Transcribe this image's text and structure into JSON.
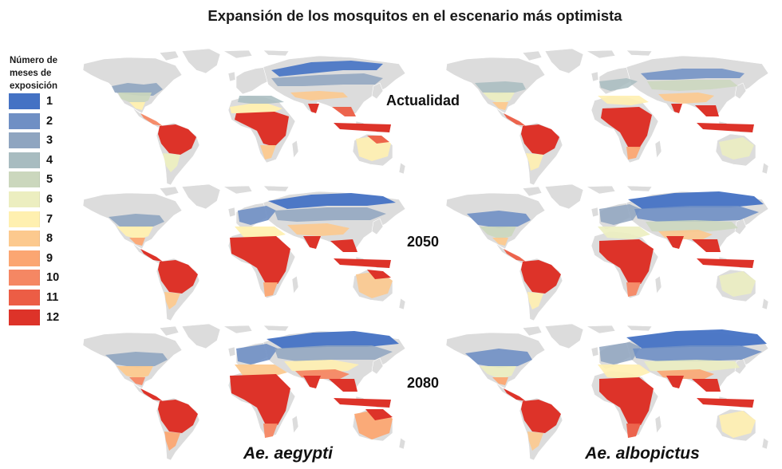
{
  "title": "Expansión de los mosquitos en el escenario más optimista",
  "legend": {
    "title": "Número de meses de exposición",
    "items": [
      {
        "label": "1",
        "color": "#4472c4"
      },
      {
        "label": "2",
        "color": "#6f8fc4"
      },
      {
        "label": "3",
        "color": "#8fa5c0"
      },
      {
        "label": "4",
        "color": "#a8bcc0"
      },
      {
        "label": "5",
        "color": "#cbd7bd"
      },
      {
        "label": "6",
        "color": "#eceec0"
      },
      {
        "label": "7",
        "color": "#fff0b0"
      },
      {
        "label": "8",
        "color": "#fcc98e"
      },
      {
        "label": "9",
        "color": "#fba672"
      },
      {
        "label": "10",
        "color": "#f58763"
      },
      {
        "label": "11",
        "color": "#ec5d45"
      },
      {
        "label": "12",
        "color": "#dd3329"
      }
    ]
  },
  "periods": [
    "Actualidad",
    "2050",
    "2080"
  ],
  "species": [
    "Ae. aegypti",
    "Ae. albopictus"
  ],
  "land_color": "#dcdcdc"
}
